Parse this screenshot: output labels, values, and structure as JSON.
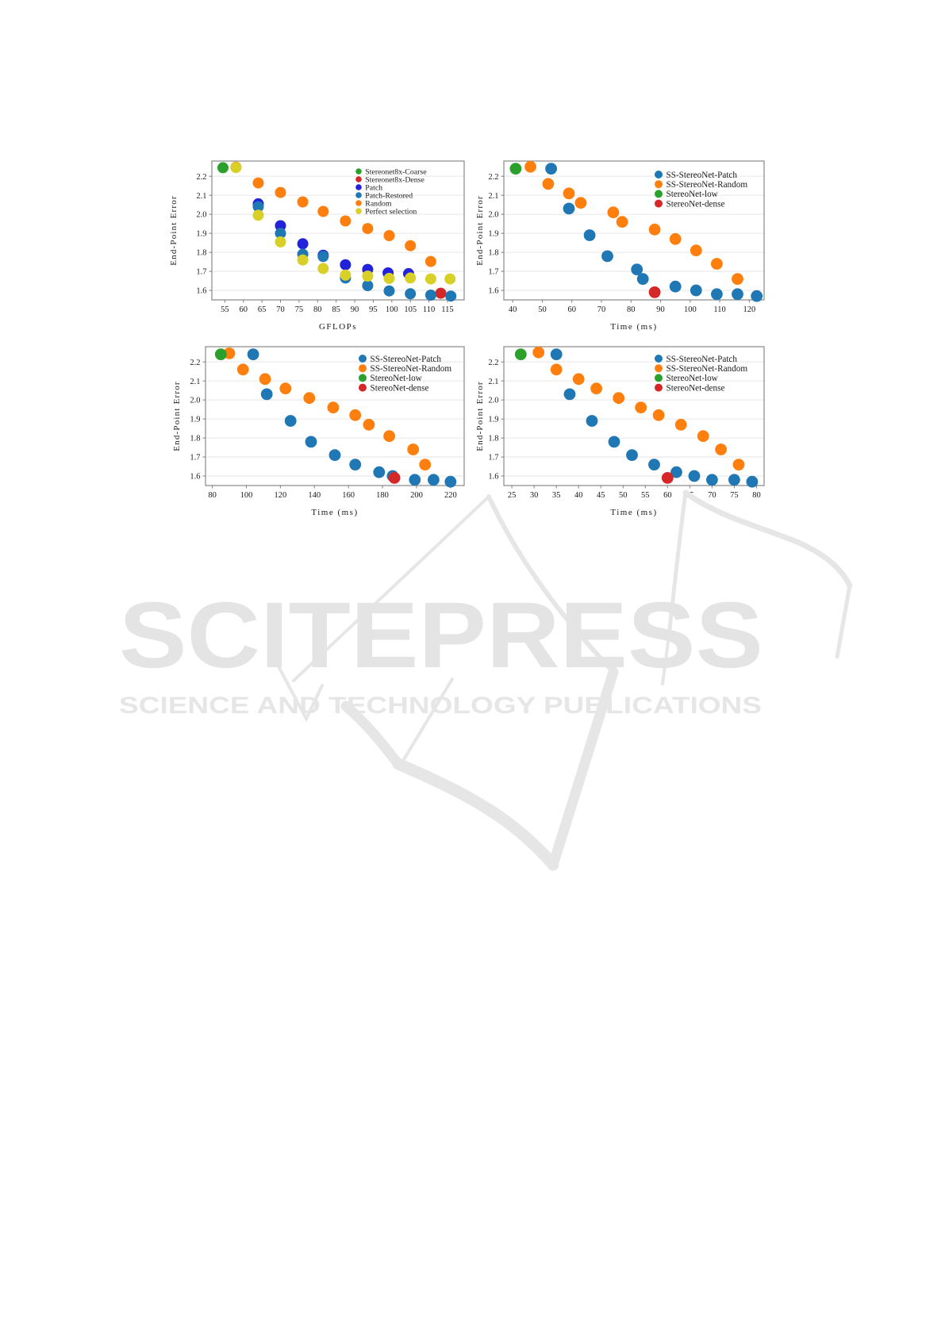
{
  "watermark": {
    "title": "SCITEPRESS",
    "subtitle": "SCIENCE AND TECHNOLOGY PUBLICATIONS",
    "title_color": "#e4e4e4",
    "subtitle_color": "#e6e6e6",
    "logo_color": "#e6e6e6"
  },
  "palette": {
    "tab_blue": "#1f77b4",
    "tab_orange": "#ff7f0e",
    "tab_green": "#2ca02c",
    "tab_red": "#d62728",
    "vivid_blue": "#2222dd",
    "olive_yellow": "#d8cf27",
    "frame": "#7f7f7f",
    "gridline": "#e6e6e6",
    "text": "#1a1a1a"
  },
  "chart_data": [
    {
      "id": "top-left",
      "type": "scatter",
      "title": "",
      "xlabel": "GFLOPs",
      "ylabel": "End-Point Error",
      "x_ticks": [
        55,
        60,
        65,
        70,
        75,
        80,
        85,
        90,
        95,
        100,
        105,
        110,
        115
      ],
      "y_ticks": [
        1.6,
        1.7,
        1.8,
        1.9,
        2.0,
        2.1,
        2.2
      ],
      "x_range": [
        51.5,
        119.5
      ],
      "y_range": [
        1.55,
        2.28
      ],
      "grid": "horizontal",
      "legend_position": "upper right",
      "series": [
        {
          "name": "Stereonet8x-Coarse",
          "color": "#2ca02c",
          "points": [
            [
              54.5,
              2.245
            ]
          ]
        },
        {
          "name": "Stereonet8x-Dense",
          "color": "#d62728",
          "points": [
            [
              113.2,
              1.585
            ]
          ]
        },
        {
          "name": "Patch",
          "color": "#2222dd",
          "points": [
            [
              64,
              2.055
            ],
            [
              70,
              1.94
            ],
            [
              76,
              1.845
            ],
            [
              81.5,
              1.785
            ],
            [
              87.5,
              1.735
            ],
            [
              93.5,
              1.71
            ],
            [
              99,
              1.692
            ],
            [
              104.5,
              1.688
            ]
          ]
        },
        {
          "name": "Patch-Restored",
          "color": "#1f77b4",
          "points": [
            [
              64,
              2.04
            ],
            [
              70,
              1.9
            ],
            [
              76,
              1.79
            ],
            [
              81.5,
              1.778
            ],
            [
              87.5,
              1.665
            ],
            [
              93.5,
              1.625
            ],
            [
              99.3,
              1.597
            ],
            [
              105,
              1.582
            ],
            [
              110.5,
              1.575
            ],
            [
              115.9,
              1.57
            ]
          ]
        },
        {
          "name": "Random",
          "color": "#ff7f0e",
          "points": [
            [
              58,
              2.248
            ],
            [
              64,
              2.165
            ],
            [
              70,
              2.115
            ],
            [
              76,
              2.065
            ],
            [
              81.5,
              2.015
            ],
            [
              87.5,
              1.965
            ],
            [
              93.5,
              1.925
            ],
            [
              99.3,
              1.888
            ],
            [
              105,
              1.835
            ],
            [
              110.5,
              1.752
            ]
          ]
        },
        {
          "name": "Perfect selection",
          "color": "#d8cf27",
          "points": [
            [
              58,
              2.246
            ],
            [
              64,
              1.995
            ],
            [
              70,
              1.855
            ],
            [
              76,
              1.76
            ],
            [
              81.5,
              1.715
            ],
            [
              87.5,
              1.68
            ],
            [
              93.5,
              1.675
            ],
            [
              99.3,
              1.663
            ],
            [
              105,
              1.665
            ],
            [
              110.5,
              1.66
            ],
            [
              115.7,
              1.66
            ]
          ]
        }
      ]
    },
    {
      "id": "top-right",
      "type": "scatter",
      "title": "",
      "xlabel": "Time (ms)",
      "ylabel": "End-Point Error",
      "x_ticks": [
        40,
        50,
        60,
        70,
        80,
        90,
        100,
        110,
        120
      ],
      "y_ticks": [
        1.6,
        1.7,
        1.8,
        1.9,
        2.0,
        2.1,
        2.2
      ],
      "x_range": [
        37,
        125
      ],
      "y_range": [
        1.55,
        2.28
      ],
      "grid": "horizontal",
      "legend_position": "upper right",
      "series": [
        {
          "name": "SS-StereoNet-Patch",
          "color": "#1f77b4",
          "points": [
            [
              53,
              2.24
            ],
            [
              59,
              2.03
            ],
            [
              66,
              1.89
            ],
            [
              72,
              1.78
            ],
            [
              82,
              1.71
            ],
            [
              84,
              1.66
            ],
            [
              95,
              1.62
            ],
            [
              102,
              1.6
            ],
            [
              109,
              1.58
            ],
            [
              116,
              1.58
            ],
            [
              122.5,
              1.57
            ]
          ]
        },
        {
          "name": "SS-StereoNet-Random",
          "color": "#ff7f0e",
          "points": [
            [
              46,
              2.25
            ],
            [
              52,
              2.16
            ],
            [
              59,
              2.11
            ],
            [
              63,
              2.06
            ],
            [
              74,
              2.01
            ],
            [
              77,
              1.96
            ],
            [
              88,
              1.92
            ],
            [
              95,
              1.87
            ],
            [
              102,
              1.81
            ],
            [
              109,
              1.74
            ],
            [
              116,
              1.66
            ]
          ]
        },
        {
          "name": "StereoNet-low",
          "color": "#2ca02c",
          "points": [
            [
              41,
              2.24
            ]
          ]
        },
        {
          "name": "StereoNet-dense",
          "color": "#d62728",
          "points": [
            [
              88,
              1.59
            ]
          ]
        }
      ]
    },
    {
      "id": "bottom-left",
      "type": "scatter",
      "title": "",
      "xlabel": "Time (ms)",
      "ylabel": "End-Point Error",
      "x_ticks": [
        80,
        100,
        120,
        140,
        160,
        180,
        200,
        220
      ],
      "y_ticks": [
        1.6,
        1.7,
        1.8,
        1.9,
        2.0,
        2.1,
        2.2
      ],
      "x_range": [
        76,
        228
      ],
      "y_range": [
        1.55,
        2.28
      ],
      "grid": "horizontal",
      "legend_position": "upper right",
      "series": [
        {
          "name": "SS-StereoNet-Patch",
          "color": "#1f77b4",
          "points": [
            [
              104,
              2.24
            ],
            [
              112,
              2.03
            ],
            [
              126,
              1.89
            ],
            [
              138,
              1.78
            ],
            [
              152,
              1.71
            ],
            [
              164,
              1.66
            ],
            [
              178,
              1.62
            ],
            [
              186,
              1.6
            ],
            [
              199,
              1.58
            ],
            [
              210,
              1.58
            ],
            [
              220,
              1.57
            ]
          ]
        },
        {
          "name": "SS-StereoNet-Random",
          "color": "#ff7f0e",
          "points": [
            [
              90,
              2.245
            ],
            [
              98,
              2.16
            ],
            [
              111,
              2.11
            ],
            [
              123,
              2.06
            ],
            [
              137,
              2.01
            ],
            [
              151,
              1.96
            ],
            [
              164,
              1.92
            ],
            [
              172,
              1.87
            ],
            [
              184,
              1.81
            ],
            [
              198,
              1.74
            ],
            [
              205,
              1.66
            ]
          ]
        },
        {
          "name": "StereoNet-low",
          "color": "#2ca02c",
          "points": [
            [
              85,
              2.24
            ]
          ]
        },
        {
          "name": "StereoNet-dense",
          "color": "#d62728",
          "points": [
            [
              187,
              1.59
            ]
          ]
        }
      ]
    },
    {
      "id": "bottom-right",
      "type": "scatter",
      "title": "",
      "xlabel": "Time (ms)",
      "ylabel": "End-Point Error",
      "x_ticks": [
        25,
        30,
        35,
        40,
        45,
        50,
        55,
        60,
        65,
        70,
        75,
        80
      ],
      "y_ticks": [
        1.6,
        1.7,
        1.8,
        1.9,
        2.0,
        2.1,
        2.2
      ],
      "x_range": [
        23.2,
        81.7
      ],
      "y_range": [
        1.55,
        2.28
      ],
      "grid": "horizontal",
      "legend_position": "upper right",
      "series": [
        {
          "name": "SS-StereoNet-Patch",
          "color": "#1f77b4",
          "points": [
            [
              35,
              2.24
            ],
            [
              38,
              2.03
            ],
            [
              43,
              1.89
            ],
            [
              48,
              1.78
            ],
            [
              52,
              1.71
            ],
            [
              57,
              1.66
            ],
            [
              62,
              1.62
            ],
            [
              66,
              1.6
            ],
            [
              70,
              1.58
            ],
            [
              75,
              1.58
            ],
            [
              79,
              1.57
            ]
          ]
        },
        {
          "name": "SS-StereoNet-Random",
          "color": "#ff7f0e",
          "points": [
            [
              31,
              2.25
            ],
            [
              35,
              2.16
            ],
            [
              40,
              2.11
            ],
            [
              44,
              2.06
            ],
            [
              49,
              2.01
            ],
            [
              54,
              1.96
            ],
            [
              58,
              1.92
            ],
            [
              63,
              1.87
            ],
            [
              68,
              1.81
            ],
            [
              72,
              1.74
            ],
            [
              76,
              1.66
            ]
          ]
        },
        {
          "name": "StereoNet-low",
          "color": "#2ca02c",
          "points": [
            [
              27,
              2.24
            ]
          ]
        },
        {
          "name": "StereoNet-dense",
          "color": "#d62728",
          "points": [
            [
              60,
              1.59
            ]
          ]
        }
      ]
    }
  ]
}
